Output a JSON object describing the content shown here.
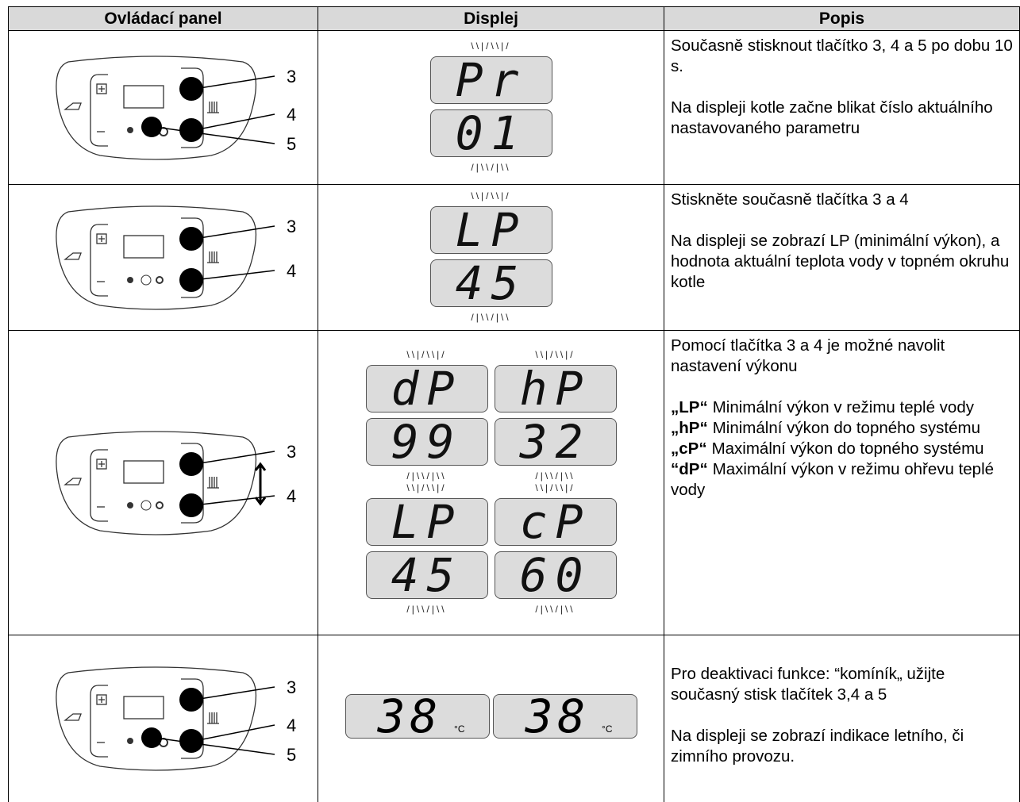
{
  "table": {
    "headers": [
      "Ovládací panel",
      "Displej",
      "Popis"
    ],
    "rows": [
      {
        "buttons": [
          "3",
          "4",
          "5"
        ],
        "displays": [
          [
            [
              "Pr",
              "01"
            ]
          ]
        ],
        "description": [
          [
            "Současně stisknout tlačítko 3, 4 a 5 po dobu 10 s."
          ],
          [
            "Na displeji kotle začne blikat číslo aktuálního nastavovaného parametru"
          ]
        ]
      },
      {
        "buttons": [
          "3",
          "4"
        ],
        "displays": [
          [
            [
              "LP",
              "45"
            ]
          ]
        ],
        "description": [
          [
            "Stiskněte současně tlačítka 3 a 4"
          ],
          [
            "Na displeji se zobrazí LP (minimální výkon), a hodnota aktuální teplota vody v topném okruhu kotle"
          ]
        ]
      },
      {
        "buttons": [
          "3",
          "4"
        ],
        "displays": [
          [
            [
              "dP",
              "99"
            ],
            [
              "hP",
              "32"
            ]
          ],
          [
            [
              "LP",
              "45"
            ],
            [
              "cP",
              "60"
            ]
          ]
        ],
        "description": [
          [
            "Pomocí tlačítka 3 a 4 je možné navolit nastavení výkonu"
          ],
          [
            {
              "term": "„LP“",
              "text": "Minimální výkon v režimu teplé vody"
            },
            {
              "term": "„hP“",
              "text": "Minimální výkon do topného systému"
            },
            {
              "term": "„cP“",
              "text": "Maximální výkon do topného systému"
            },
            {
              "term": "“dP“",
              "text": "Maximální výkon v režimu ohřevu teplé vody"
            }
          ]
        ]
      },
      {
        "buttons": [
          "3",
          "4",
          "5"
        ],
        "temps": [
          {
            "value": "38",
            "unit": "°C"
          },
          {
            "value": "38",
            "unit": "°C"
          }
        ],
        "description": [
          [
            "Pro deaktivaci funkce: “komíník„ užijte současný stisk tlačítek 3,4 a 5"
          ],
          [
            "Na displeji se zobrazí indikace letního, či zimního provozu."
          ]
        ]
      }
    ]
  }
}
